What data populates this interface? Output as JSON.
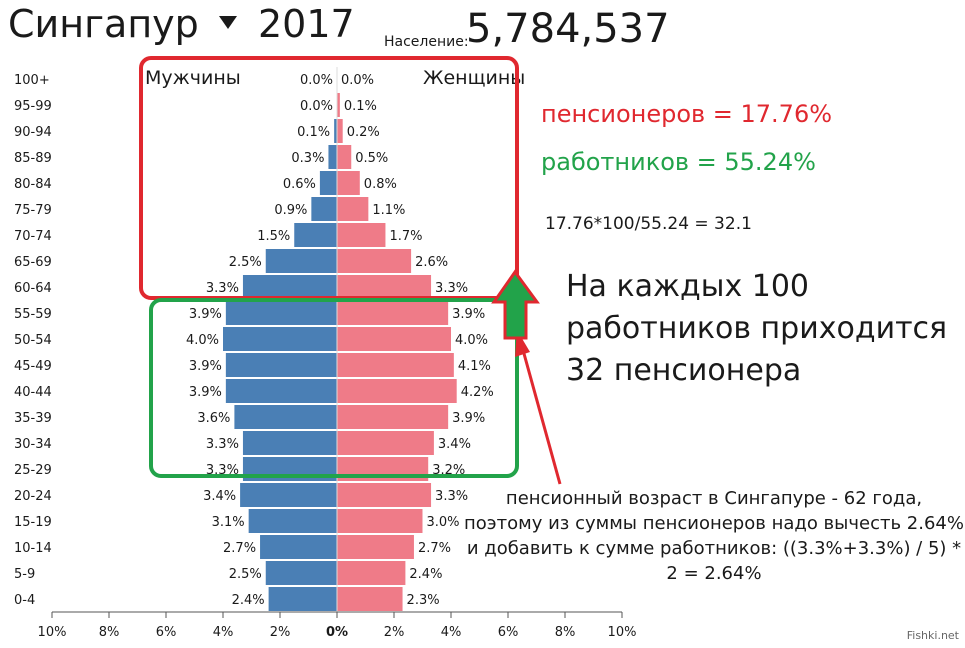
{
  "header": {
    "country": "Сингапур",
    "year": "2017",
    "population_label": "Население:",
    "population_value": "5,784,537"
  },
  "chart_data": {
    "type": "bar",
    "subtype": "population-pyramid",
    "categories": [
      "100+",
      "95-99",
      "90-94",
      "85-89",
      "80-84",
      "75-79",
      "70-74",
      "65-69",
      "60-64",
      "55-59",
      "50-54",
      "45-49",
      "40-44",
      "35-39",
      "30-34",
      "25-29",
      "20-24",
      "15-19",
      "10-14",
      "5-9",
      "0-4"
    ],
    "series": [
      {
        "name": "Мужчины",
        "color": "#4a7fb5",
        "values": [
          0.0,
          0.0,
          0.1,
          0.3,
          0.6,
          0.9,
          1.5,
          2.5,
          3.3,
          3.9,
          4.0,
          3.9,
          3.9,
          3.6,
          3.3,
          3.3,
          3.4,
          3.1,
          2.7,
          2.5,
          2.4
        ],
        "labels": [
          "0.0%",
          "0.0%",
          "0.1%",
          "0.3%",
          "0.6%",
          "0.9%",
          "1.5%",
          "2.5%",
          "3.3%",
          "3.9%",
          "4.0%",
          "3.9%",
          "3.9%",
          "3.6%",
          "3.3%",
          "3.3%",
          "3.4%",
          "3.1%",
          "2.7%",
          "2.5%",
          "2.4%"
        ]
      },
      {
        "name": "Женщины",
        "color": "#ef7b88",
        "values": [
          0.0,
          0.1,
          0.2,
          0.5,
          0.8,
          1.1,
          1.7,
          2.6,
          3.3,
          3.9,
          4.0,
          4.1,
          4.2,
          3.9,
          3.4,
          3.2,
          3.3,
          3.0,
          2.7,
          2.4,
          2.3
        ],
        "labels": [
          "0.0%",
          "0.1%",
          "0.2%",
          "0.5%",
          "0.8%",
          "1.1%",
          "1.7%",
          "2.6%",
          "3.3%",
          "3.9%",
          "4.0%",
          "4.1%",
          "4.2%",
          "3.9%",
          "3.4%",
          "3.2%",
          "3.3%",
          "3.0%",
          "2.7%",
          "2.4%",
          "2.3%"
        ]
      }
    ],
    "x_ticks": [
      "10%",
      "8%",
      "6%",
      "4%",
      "2%",
      "0%",
      "2%",
      "4%",
      "6%",
      "8%",
      "10%"
    ],
    "xlim": [
      -10,
      10
    ],
    "grid": false
  },
  "annotations": {
    "pensioners": "пенсионеров = 17.76%",
    "workers": "работников = 55.24%",
    "calc": "17.76*100/55.24 = 32.1",
    "big_text": "На каждых 100 работников приходится 32 пенсионера",
    "pension_note": "пенсионный возраст в Сингапуре - 62 года, поэтому из суммы пенсионеров надо вычесть 2.64% и добавить к сумме работников: ((3.3%+3.3%) / 5) * 2 = 2.64%",
    "red_color": "#e0282f",
    "green_color": "#22a34a"
  },
  "watermark": "Fishki.net"
}
